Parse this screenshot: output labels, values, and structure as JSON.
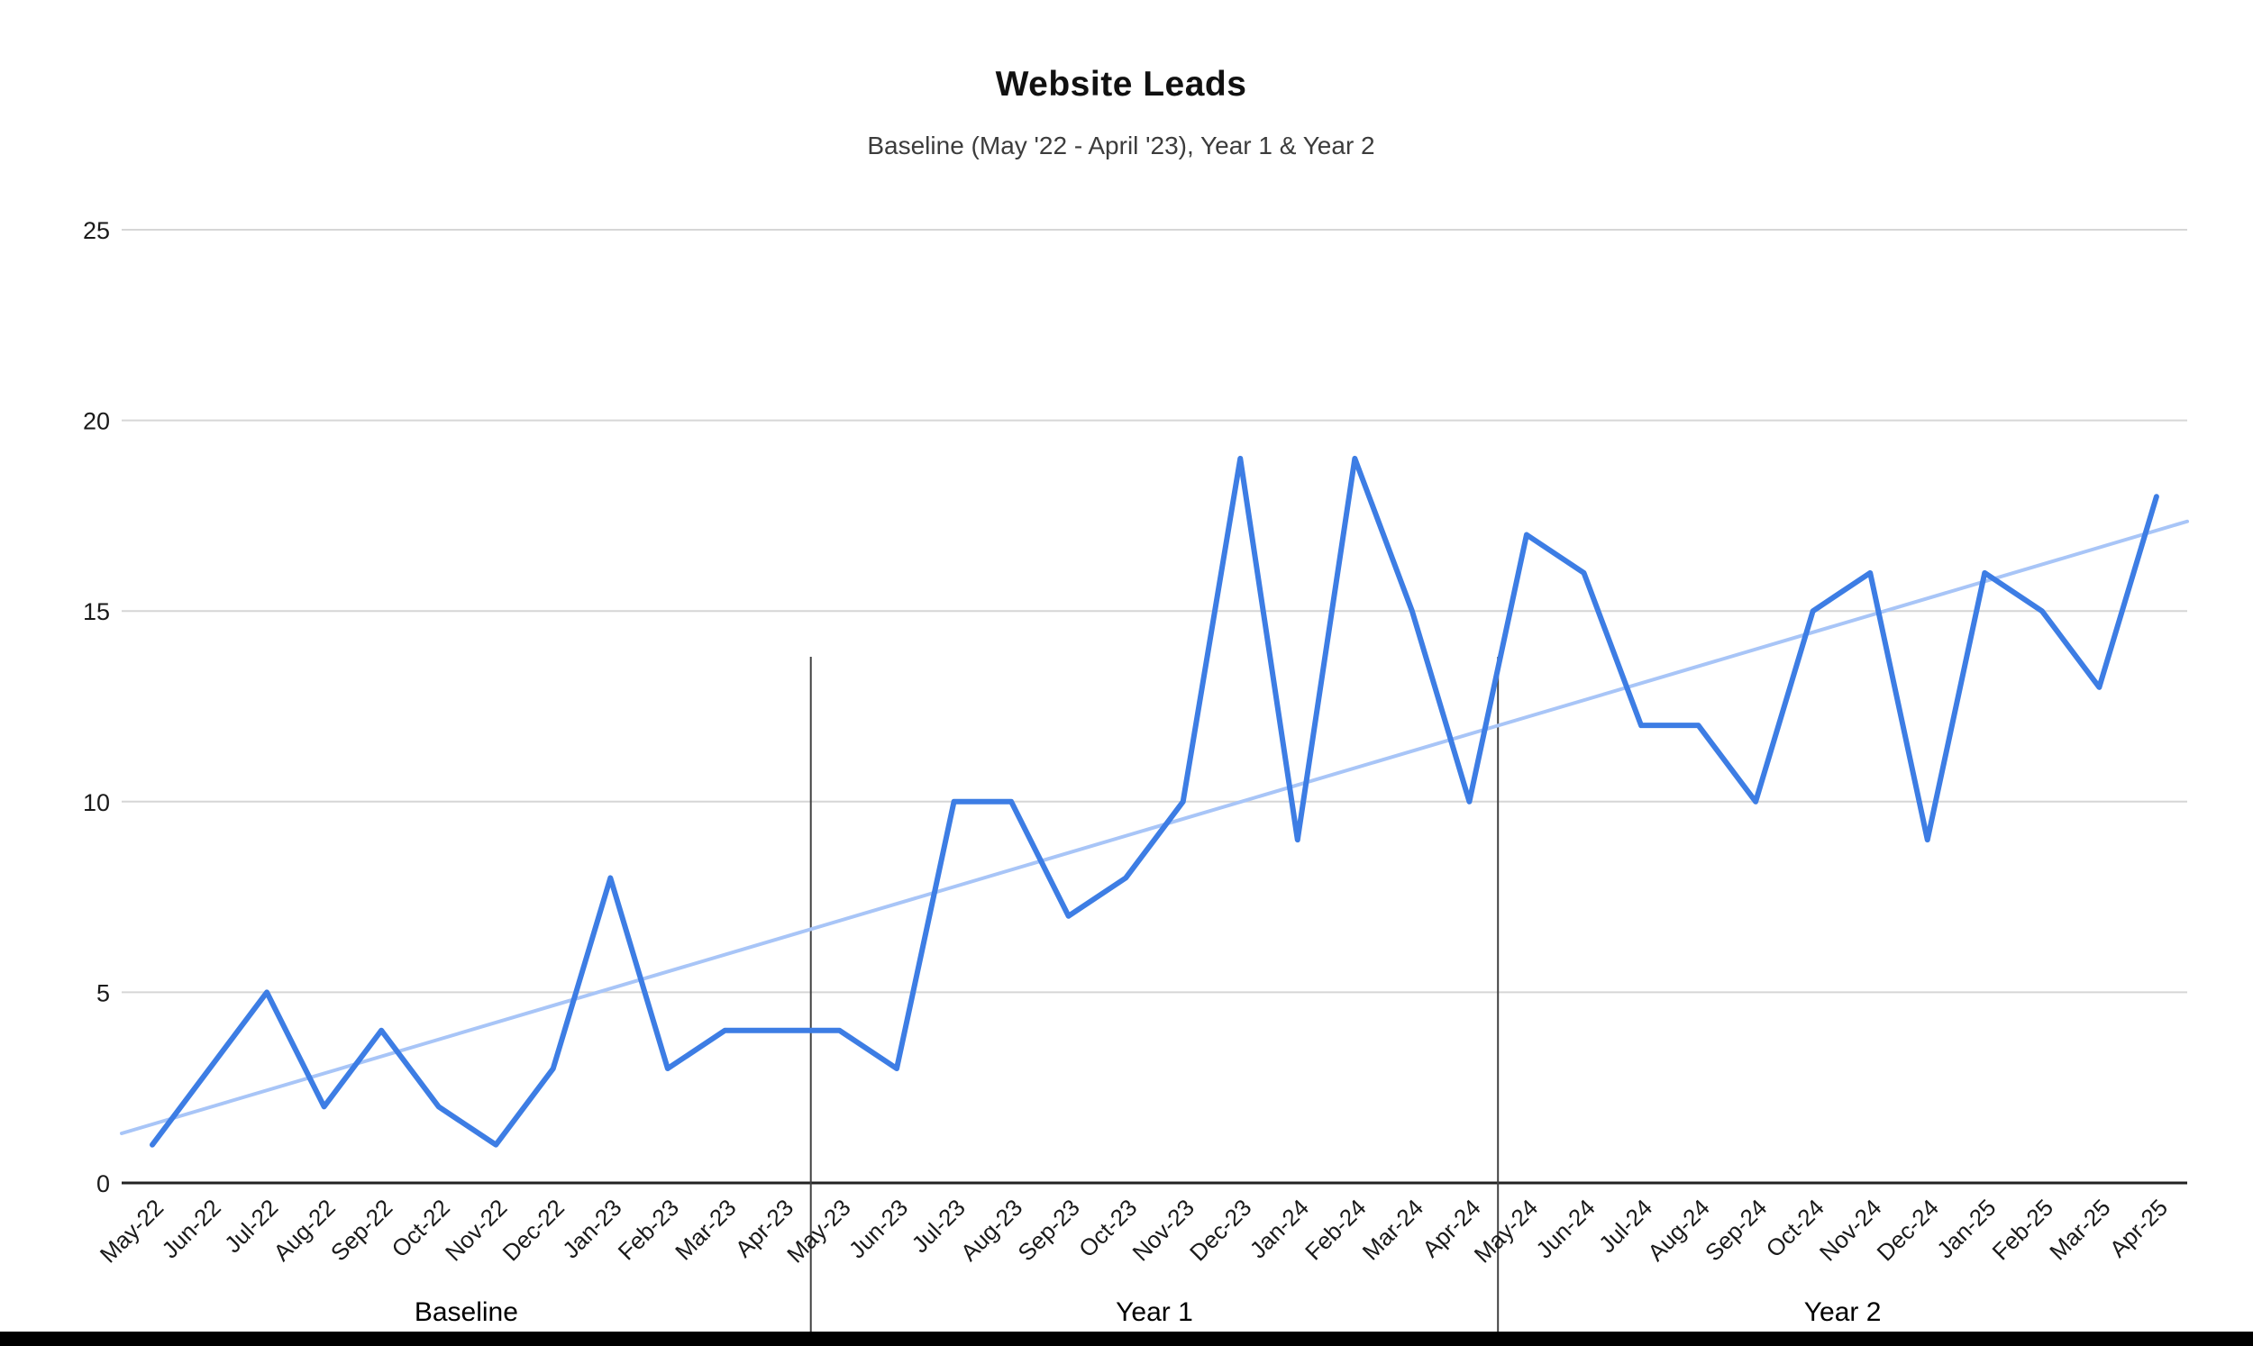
{
  "header": {
    "title": "Website Leads",
    "subtitle": "Baseline (May '22 - April '23), Year 1 & Year 2"
  },
  "chart_data": {
    "type": "line",
    "title": "Website Leads",
    "subtitle": "Baseline (May '22 - April '23), Year 1 & Year 2",
    "categories": [
      "May-22",
      "Jun-22",
      "Jul-22",
      "Aug-22",
      "Sep-22",
      "Oct-22",
      "Nov-22",
      "Dec-22",
      "Jan-23",
      "Feb-23",
      "Mar-23",
      "Apr-23",
      "May-23",
      "Jun-23",
      "Jul-23",
      "Aug-23",
      "Sep-23",
      "Oct-23",
      "Nov-23",
      "Dec-23",
      "Jan-24",
      "Feb-24",
      "Mar-24",
      "Apr-24",
      "May-24",
      "Jun-24",
      "Jul-24",
      "Aug-24",
      "Sep-24",
      "Oct-24",
      "Nov-24",
      "Dec-24",
      "Jan-25",
      "Feb-25",
      "Mar-25",
      "Apr-25"
    ],
    "series": [
      {
        "name": "Website Leads",
        "color": "#3d7de4",
        "values": [
          1,
          3,
          5,
          2,
          4,
          2,
          1,
          3,
          8,
          3,
          4,
          4,
          4,
          3,
          10,
          10,
          7,
          8,
          10,
          19,
          9,
          19,
          15,
          10,
          17,
          16,
          12,
          12,
          10,
          15,
          16,
          9,
          16,
          15,
          13,
          18
        ]
      }
    ],
    "trendline": {
      "name": "Linear trendline",
      "color": "#a8c5f7",
      "start_value": 1.3,
      "end_value": 17.35,
      "spans_full_plot_width": true
    },
    "xlabel": "",
    "ylabel": "",
    "ylim": [
      0,
      25
    ],
    "y_ticks": [
      0,
      5,
      10,
      15,
      20,
      25
    ],
    "grid": "horizontal",
    "legend_position": "none",
    "sections": [
      {
        "label": "Baseline",
        "from_month": "May-22",
        "to_month": "Apr-23"
      },
      {
        "label": "Year 1",
        "from_month": "May-23",
        "to_month": "Apr-24"
      },
      {
        "label": "Year 2",
        "from_month": "May-24",
        "to_month": "Apr-25"
      }
    ],
    "colors": {
      "series_line": "#3d7de4",
      "trendline": "#a8c5f7",
      "gridline": "#d6d6d6",
      "zero_axis": "#222222",
      "section_divider": "#424242",
      "tick_text": "#1a1a1a",
      "section_text": "#000000",
      "bottom_bar": "#000000"
    }
  }
}
